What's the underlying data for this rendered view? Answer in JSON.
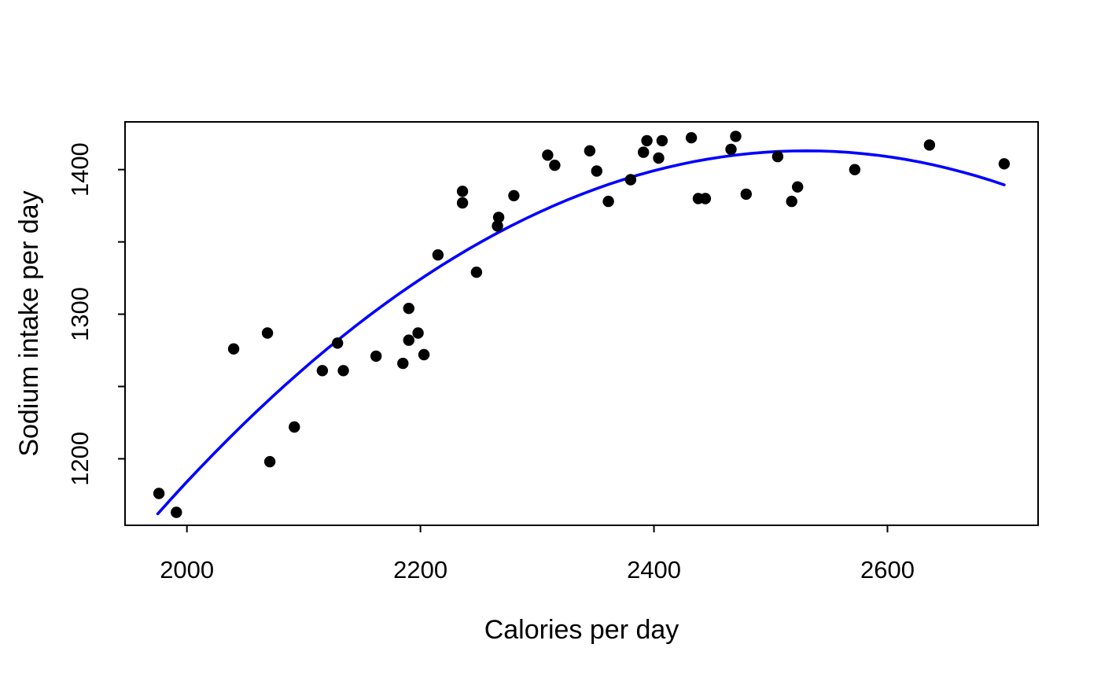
{
  "figure": {
    "background": "#ffffff",
    "axis_color": "#000000"
  },
  "chart_data": {
    "type": "scatter",
    "title": "",
    "xlabel": "Calories per day",
    "ylabel": "Sodium intake per day",
    "xlim": [
      1947,
      2729
    ],
    "ylim": [
      1154,
      1433
    ],
    "x_ticks": [
      2000,
      2200,
      2400,
      2600
    ],
    "x_tick_labels": [
      "2000",
      "2200",
      "2400",
      "2600"
    ],
    "y_ticks": [
      1200,
      1250,
      1300,
      1350,
      1400
    ],
    "y_tick_labels": [
      "1200",
      "",
      "1300",
      "",
      "1400"
    ],
    "grid": false,
    "legend": null,
    "point_style": {
      "color": "#000000",
      "radius": 7.2
    },
    "points": [
      [
        1976,
        1176
      ],
      [
        1991,
        1163
      ],
      [
        2040,
        1276
      ],
      [
        2069,
        1287
      ],
      [
        2071,
        1198
      ],
      [
        2092,
        1222
      ],
      [
        2116,
        1261
      ],
      [
        2134,
        1261
      ],
      [
        2129,
        1280
      ],
      [
        2162,
        1271
      ],
      [
        2185,
        1266
      ],
      [
        2190,
        1282
      ],
      [
        2198,
        1287
      ],
      [
        2203,
        1272
      ],
      [
        2190,
        1304
      ],
      [
        2215,
        1341
      ],
      [
        2248,
        1329
      ],
      [
        2236,
        1385
      ],
      [
        2236,
        1377
      ],
      [
        2267,
        1367
      ],
      [
        2266,
        1361
      ],
      [
        2280,
        1382
      ],
      [
        2309,
        1410
      ],
      [
        2315,
        1403
      ],
      [
        2345,
        1413
      ],
      [
        2351,
        1399
      ],
      [
        2361,
        1378
      ],
      [
        2380,
        1393
      ],
      [
        2394,
        1420
      ],
      [
        2407,
        1420
      ],
      [
        2391,
        1412
      ],
      [
        2404,
        1408
      ],
      [
        2432,
        1422
      ],
      [
        2438,
        1380
      ],
      [
        2444,
        1380
      ],
      [
        2466,
        1414
      ],
      [
        2470,
        1423
      ],
      [
        2479,
        1383
      ],
      [
        2506,
        1409
      ],
      [
        2518,
        1378
      ],
      [
        2523,
        1388
      ],
      [
        2572,
        1400
      ],
      [
        2636,
        1417
      ],
      [
        2700,
        1404
      ]
    ],
    "trend_line": {
      "type": "quadratic",
      "color": "#0000FF",
      "width": 3.6,
      "vertex_x": 2530,
      "vertex_y": 1413,
      "a": -0.000815,
      "domain": [
        1975,
        2700
      ]
    }
  }
}
